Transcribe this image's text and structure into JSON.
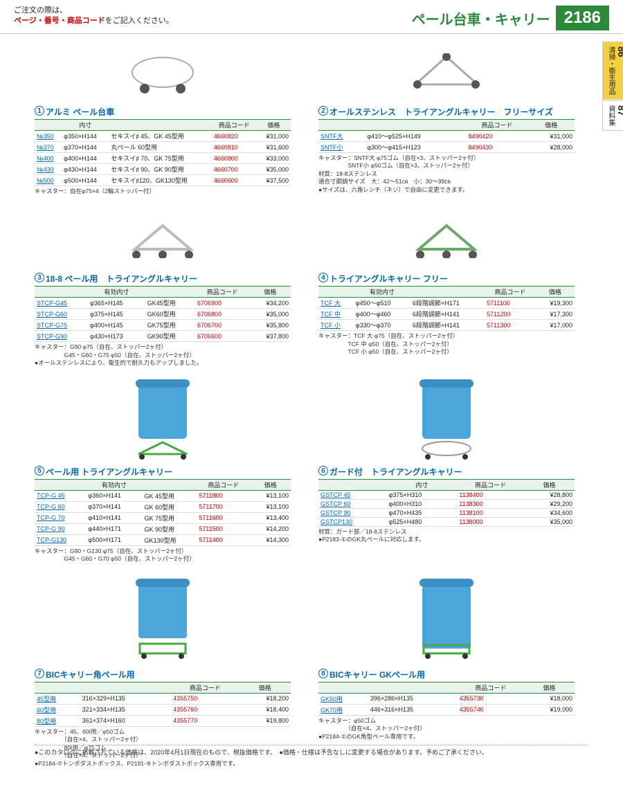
{
  "header": {
    "order_note_1": "ご注文の際は、",
    "order_note_2": "ページ・番号・商品コード",
    "order_note_3": "をご記入ください。",
    "title": "ペール台車・キャリー",
    "page_num": "2186"
  },
  "products": [
    {
      "id": "p1",
      "num": "①",
      "title": "アルミ ペール台車",
      "cols": [
        "",
        "内寸",
        "",
        "商品コード",
        "価格"
      ],
      "rows": [
        [
          "№350",
          "φ350×H144",
          "セキスイ♯ 45、GK 45型用",
          "4660820",
          "¥31,000"
        ],
        [
          "№370",
          "φ370×H144",
          "丸ペール 60型用",
          "4660810",
          "¥31,600"
        ],
        [
          "№400",
          "φ400×H144",
          "セキスイ♯ 70、GK 75型用",
          "4660800",
          "¥33,000"
        ],
        [
          "№430",
          "φ430×H144",
          "セキスイ♯ 90、GK 90型用",
          "4660700",
          "¥35,000"
        ],
        [
          "№500",
          "φ500×H144",
          "セキスイ♯120、GK130型用",
          "4660600",
          "¥37,500"
        ]
      ],
      "note": "キャスター：自在φ75×4（2輪ストッパー付）"
    },
    {
      "id": "p2",
      "num": "②",
      "title": "オールステンレス　トライアングルキャリー　フリーサイズ",
      "cols": [
        "",
        "",
        "商品コード",
        "価格"
      ],
      "rows": [
        [
          "SNTF大",
          "φ410～φ525×H149",
          "8490420",
          "¥31,000"
        ],
        [
          "SNTF小",
          "φ300～φ415×H123",
          "8490430",
          "¥28,000"
        ]
      ],
      "note": "キャスター：SNTF大 φ75ゴム（自在×3、ストッパー2ヶ付）\n　　　　　SNTF小 φ50ゴム（自在×3、ストッパー2ヶ付）\n材質：18-8ステンレス\n適合寸胴鍋サイズ　大：42～51㎝　小：30～39㎝\n●サイズは、六角レンチ（ネジ）で自由に変更できます。"
    },
    {
      "id": "p3",
      "num": "③",
      "title": "18-8 ペール用　トライアングルキャリー",
      "cols": [
        "",
        "有効内寸",
        "",
        "商品コード",
        "価格"
      ],
      "rows": [
        [
          "STCP-G45",
          "φ365×H145",
          "GK45型用",
          "6706900",
          "¥34,200"
        ],
        [
          "STCP-G60",
          "φ375×H145",
          "GK60型用",
          "6706800",
          "¥35,000"
        ],
        [
          "STCP-G75",
          "φ400×H145",
          "GK75型用",
          "6706700",
          "¥35,800"
        ],
        [
          "STCP-G90",
          "φ430×H173",
          "GK90型用",
          "6706600",
          "¥37,800"
        ]
      ],
      "note": "キャスター：G90 φ75（自在、ストッパー2ヶ付）\n　　　　　G45・G60・G75 φ50（自在、ストッパー2ヶ付）\n●オールステンレスにより、衛生的で耐久力もアップしました。"
    },
    {
      "id": "p4",
      "num": "④",
      "title": "トライアングルキャリー フリー",
      "cols": [
        "",
        "有効内寸",
        "",
        "商品コード",
        "価格"
      ],
      "rows": [
        [
          "TCF 大",
          "φ450～φ510",
          "6段階調節×H171",
          "5711100",
          "¥19,300"
        ],
        [
          "TCF 中",
          "φ400～φ460",
          "6段階調節×H141",
          "5711200",
          "¥17,300"
        ],
        [
          "TCF 小",
          "φ330～φ370",
          "6段階調節×H141",
          "5711300",
          "¥17,000"
        ]
      ],
      "note": "キャスター：TCF 大 φ75（自在、ストッパー2ヶ付）\n　　　　　TCF 中 φ50（自在、ストッパー2ヶ付）\n　　　　　TCF 小 φ50（自在、ストッパー2ヶ付）"
    },
    {
      "id": "p5",
      "num": "⑤",
      "title": "ペール用 トライアングルキャリー",
      "cols": [
        "",
        "有効内寸",
        "",
        "商品コード",
        "価格"
      ],
      "rows": [
        [
          "TCP-G 45",
          "φ360×H141",
          "GK 45型用",
          "5711800",
          "¥13,100"
        ],
        [
          "TCP-G 60",
          "φ370×H141",
          "GK 60型用",
          "5711700",
          "¥13,100"
        ],
        [
          "TCP-G 70",
          "φ410×H141",
          "GK 75型用",
          "5711600",
          "¥13,400"
        ],
        [
          "TCP-G 90",
          "φ440×H171",
          "GK 90型用",
          "5711500",
          "¥14,200"
        ],
        [
          "TCP-G130",
          "φ500×H171",
          "GK130型用",
          "5711400",
          "¥14,300"
        ]
      ],
      "note": "キャスター：G90・G130 φ75（自在、ストッパー2ヶ付）\n　　　　　G45・G60・G70 φ50（自在、ストッパー2ヶ付）"
    },
    {
      "id": "p6",
      "num": "⑥",
      "title": "ガード付　トライアングルキャリー",
      "cols": [
        "",
        "内寸",
        "商品コード",
        "価格"
      ],
      "rows": [
        [
          "GSTCP 45",
          "φ375×H310",
          "1138400",
          "¥28,800"
        ],
        [
          "GSTCP 60",
          "φ400×H310",
          "1138300",
          "¥29,200"
        ],
        [
          "GSTCP 90",
          "φ470×H435",
          "1138100",
          "¥34,600"
        ],
        [
          "GSTCP130",
          "φ525×H480",
          "1138000",
          "¥35,000"
        ]
      ],
      "note": "材質：ガード部／18-8ステンレス\n●P2183-①のGK丸ペールに対応します。"
    },
    {
      "id": "p7",
      "num": "⑦",
      "title": "BICキャリー角ペール用",
      "cols": [
        "",
        "",
        "商品コード",
        "価格"
      ],
      "rows": [
        [
          "45型用",
          "316×329×H135",
          "4355750",
          "¥18,200"
        ],
        [
          "60型用",
          "321×334×H135",
          "4355760",
          "¥18,400"
        ],
        [
          "80型用",
          "361×374×H160",
          "4355770",
          "¥19,800"
        ]
      ],
      "note": "キャスター：45、60ℓ用／φ50ゴム\n　　　　　（自在×4、ストッパー2ヶ付）\n　　　　　80ℓ用／φ75ゴム\n　　　　　（自在×4、ストッパー2ヶ付）\n●P2184-⑦トンボダストボックス、P2191-⑨トンボダストボックス専用です。"
    },
    {
      "id": "p8",
      "num": "⑧",
      "title": "BICキャリー GKペール用",
      "cols": [
        "",
        "",
        "商品コード",
        "価格"
      ],
      "rows": [
        [
          "GK50用",
          "396×286×H135",
          "4355730",
          "¥18,000"
        ],
        [
          "GK70用",
          "446×316×H135",
          "4355740",
          "¥19,000"
        ]
      ],
      "note": "キャスター：φ50ゴム\n　　　　　（自在×4、ストッパー2ヶ付）\n●P2184-①のGK角型ペール専用です。"
    }
  ],
  "side_tabs": [
    {
      "n": "86",
      "label": "清掃・衛生用品",
      "active": true
    },
    {
      "n": "87",
      "label": "資料集",
      "active": false
    }
  ],
  "footer": "●このカタログに掲載されている価格は、2020年4月1日現在のもので、税抜価格です。　●価格・仕様は予告なしに変更する場合があります。予めご了承ください。"
}
